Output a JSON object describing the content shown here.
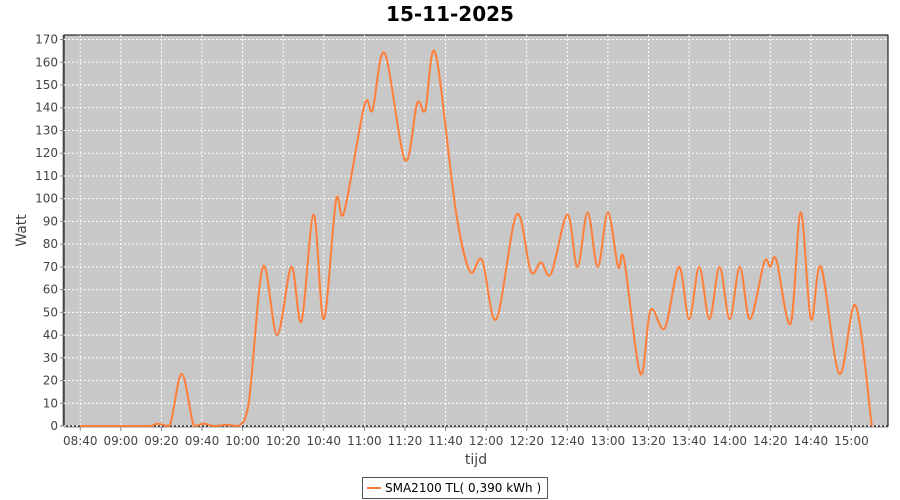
{
  "chart_data": {
    "type": "line",
    "title": "15-11-2025",
    "xlabel": "tijd",
    "ylabel": "Watt",
    "xlim": [
      "08:32",
      "15:18"
    ],
    "ylim": [
      0,
      172
    ],
    "x_ticks": [
      "08:40",
      "09:00",
      "09:20",
      "09:40",
      "10:00",
      "10:20",
      "10:40",
      "11:00",
      "11:20",
      "11:40",
      "12:00",
      "12:20",
      "12:40",
      "13:00",
      "13:20",
      "13:40",
      "14:00",
      "14:20",
      "14:40",
      "15:00"
    ],
    "y_ticks": [
      0,
      10,
      20,
      30,
      40,
      50,
      60,
      70,
      80,
      90,
      100,
      110,
      120,
      130,
      140,
      150,
      160,
      170
    ],
    "grid": true,
    "legend_position": "bottom",
    "plot_background": "#c8c8c8",
    "series": [
      {
        "name": "SMA2100 TL( 0,390 kWh )",
        "color": "#ff7f3a",
        "x": [
          "08:40",
          "09:00",
          "09:14",
          "09:18",
          "09:24",
          "09:30",
          "09:36",
          "09:41",
          "09:46",
          "09:52",
          "09:58",
          "10:03",
          "10:10",
          "10:17",
          "10:24",
          "10:29",
          "10:35",
          "10:40",
          "10:46",
          "10:50",
          "11:00",
          "11:04",
          "11:10",
          "11:20",
          "11:26",
          "11:30",
          "11:35",
          "11:45",
          "11:52",
          "11:58",
          "12:05",
          "12:15",
          "12:22",
          "12:27",
          "12:32",
          "12:40",
          "12:45",
          "12:50",
          "12:55",
          "13:00",
          "13:05",
          "13:08",
          "13:16",
          "13:21",
          "13:28",
          "13:35",
          "13:40",
          "13:45",
          "13:50",
          "13:55",
          "14:00",
          "14:05",
          "14:10",
          "14:17",
          "14:20",
          "14:23",
          "14:30",
          "14:35",
          "14:40",
          "14:45",
          "14:54",
          "15:02",
          "15:10"
        ],
        "y": [
          0,
          0,
          0,
          1,
          0,
          23,
          0,
          1,
          0,
          0.5,
          0,
          10,
          70,
          40,
          70,
          46,
          93,
          47,
          99,
          94,
          141,
          139,
          164,
          117,
          142,
          139,
          164,
          95,
          68,
          73,
          47,
          93,
          68,
          72,
          67,
          93,
          70,
          94,
          70,
          94,
          70,
          73,
          23,
          51,
          43,
          70,
          47,
          70,
          47,
          70,
          47,
          70,
          47,
          72,
          70,
          73,
          45,
          94,
          47,
          70,
          23,
          53,
          0
        ]
      }
    ]
  }
}
